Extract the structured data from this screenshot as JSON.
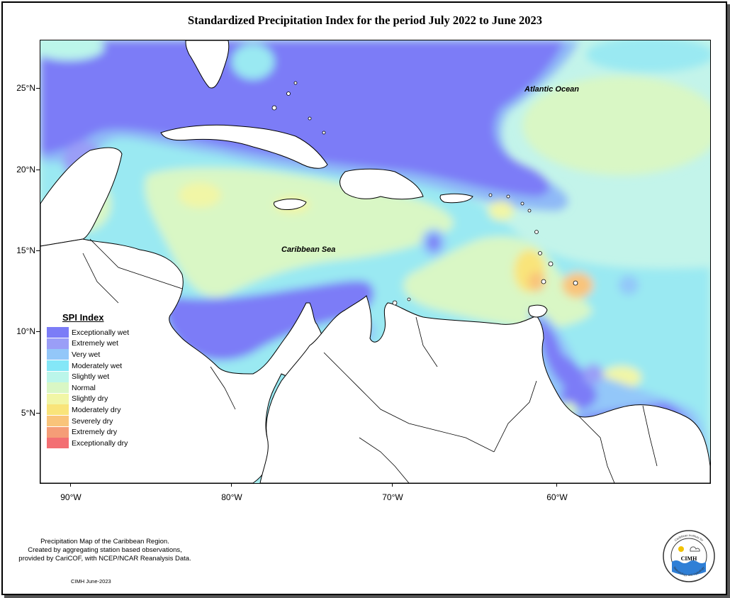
{
  "title": "Standardized Precipitation Index for the period July 2022 to June 2023",
  "axes": {
    "lat_ticks": [
      "25°N",
      "20°N",
      "15°N",
      "10°N",
      "5°N"
    ],
    "lon_ticks": [
      "90°W",
      "80°W",
      "70°W",
      "60°W"
    ]
  },
  "labels": {
    "atlantic": "Atlantic Ocean",
    "caribbean": "Caribbean Sea"
  },
  "legend": {
    "title": "SPI Index",
    "items": [
      {
        "label": "Exceptionally wet",
        "color": "#7b7cf7"
      },
      {
        "label": "Extremely wet",
        "color": "#9a9ef7"
      },
      {
        "label": "Very wet",
        "color": "#93c7f9"
      },
      {
        "label": "Moderately wet",
        "color": "#84e7f7"
      },
      {
        "label": "Slightly wet",
        "color": "#bbf6ea"
      },
      {
        "label": "Normal",
        "color": "#d9f7c5"
      },
      {
        "label": "Slightly dry",
        "color": "#f1f6a6"
      },
      {
        "label": "Moderately dry",
        "color": "#f9e47a"
      },
      {
        "label": "Severely dry",
        "color": "#f9c47a"
      },
      {
        "label": "Extremely dry",
        "color": "#f59d77"
      },
      {
        "label": "Exceptionally dry",
        "color": "#f36f73"
      }
    ]
  },
  "footer": {
    "note_line1": "Precipitation Map of the Caribbean Region.",
    "note_line2": "Created by aggregating station based observations,",
    "note_line3": "provided by CariCOF, with NCEP/NCAR Reanalysis Data.",
    "credit": "CIMH June-2023",
    "logo_text": "CIMH",
    "logo_ring_top": "Caribbean Institute for",
    "logo_ring_bottom": "Meteorology and Hydrology"
  }
}
